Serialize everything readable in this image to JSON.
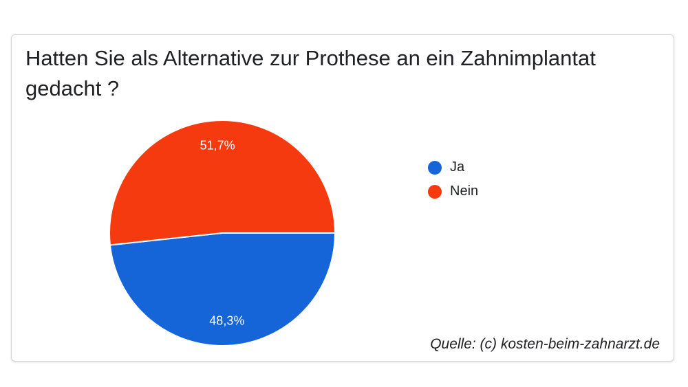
{
  "chart_data": {
    "type": "pie",
    "title": "Hatten Sie als Alternative zur Prothese an ein Zahnimplantat gedacht ?",
    "categories": [
      "Ja",
      "Nein"
    ],
    "values": [
      48.3,
      51.7
    ],
    "labels": [
      "48,3%",
      "51,7%"
    ],
    "colors": [
      "#1565d8",
      "#f43a0e"
    ],
    "legend_position": "right"
  },
  "source": "Quelle: (c) kosten-beim-zahnarzt.de"
}
